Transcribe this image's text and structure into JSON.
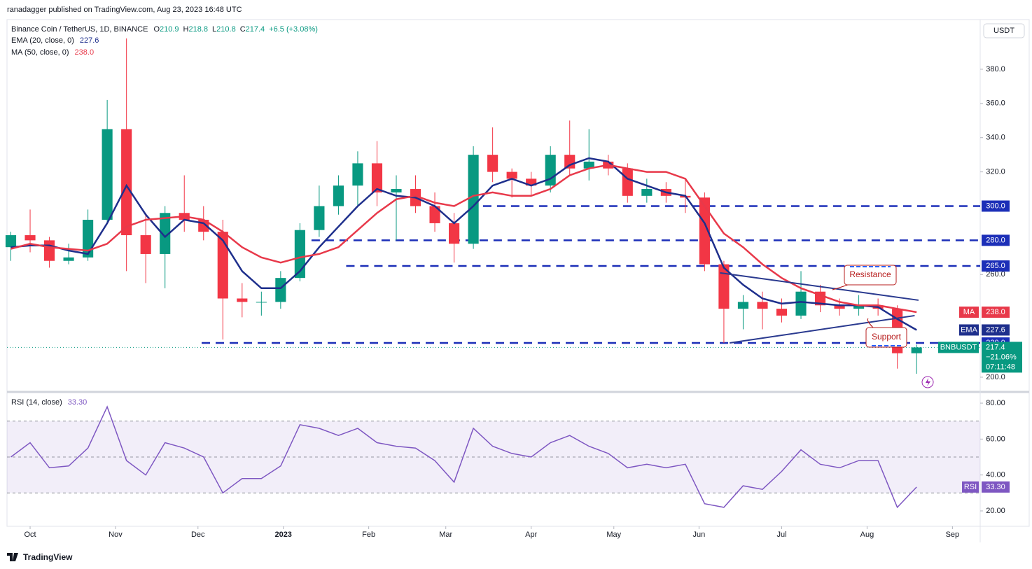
{
  "header": {
    "publisher": "ranadagger published on TradingView.com, Aug 23, 2023 16:48 UTC",
    "brand": "TradingView"
  },
  "chart_data": [
    {
      "type": "candlestick",
      "title": "Binance Coin / TetherUS, 1D, BINANCE",
      "quote": [
        {
          "label": "O",
          "value": "210.9"
        },
        {
          "label": "H",
          "value": "218.8"
        },
        {
          "label": "L",
          "value": "210.8"
        },
        {
          "label": "C",
          "value": "217.4"
        }
      ],
      "change": "+6.5 (+3.08%)",
      "currency": "USDT",
      "categories": [
        null,
        null,
        null,
        null,
        null,
        null,
        null,
        null,
        null,
        null,
        null,
        null,
        null,
        null,
        null,
        null,
        null,
        null,
        null,
        null,
        null,
        null,
        null,
        null,
        null,
        null,
        null,
        null,
        null,
        null,
        null,
        null,
        null,
        null,
        null,
        null,
        null,
        null,
        null,
        null,
        null,
        null,
        null,
        null,
        null,
        null,
        null,
        null
      ],
      "open": [
        276,
        283,
        280,
        268,
        270,
        292,
        345,
        283,
        272,
        296,
        292,
        285,
        246,
        244,
        244,
        258,
        286,
        300,
        312,
        325,
        308,
        310,
        300,
        290,
        278,
        330,
        320,
        316,
        312,
        330,
        322,
        326,
        322,
        306,
        310,
        306,
        305,
        266,
        240,
        244,
        240,
        236,
        250,
        242,
        240,
        242,
        240,
        214
      ],
      "high": [
        285,
        298,
        282,
        278,
        298,
        362,
        398,
        296,
        300,
        318,
        300,
        292,
        255,
        250,
        262,
        290,
        312,
        318,
        332,
        338,
        318,
        318,
        308,
        296,
        335,
        346,
        322,
        320,
        335,
        350,
        345,
        330,
        325,
        316,
        314,
        316,
        308,
        268,
        248,
        250,
        246,
        262,
        254,
        246,
        248,
        246,
        242,
        219
      ],
      "low": [
        268,
        273,
        264,
        266,
        268,
        290,
        262,
        255,
        252,
        285,
        280,
        222,
        235,
        236,
        240,
        256,
        282,
        295,
        300,
        300,
        280,
        296,
        285,
        267,
        275,
        314,
        305,
        306,
        308,
        318,
        315,
        318,
        302,
        302,
        302,
        296,
        262,
        220,
        228,
        228,
        232,
        234,
        238,
        236,
        236,
        236,
        205,
        202
      ],
      "close": [
        283,
        280,
        268,
        270,
        292,
        345,
        283,
        272,
        296,
        292,
        285,
        246,
        244,
        244,
        258,
        286,
        300,
        312,
        325,
        308,
        310,
        300,
        290,
        278,
        330,
        320,
        316,
        312,
        330,
        322,
        326,
        322,
        306,
        310,
        306,
        305,
        266,
        240,
        244,
        240,
        236,
        250,
        242,
        240,
        242,
        240,
        214,
        217.4
      ],
      "up_color": "#089981",
      "down_color": "#f23645",
      "xlim": [
        -0.2,
        50.3
      ],
      "xticks": [
        {
          "value": 1,
          "label": "Oct"
        },
        {
          "value": 5.43,
          "label": "Nov"
        },
        {
          "value": 9.71,
          "label": "Dec"
        },
        {
          "value": 14.14,
          "label": "2023"
        },
        {
          "value": 18.57,
          "label": "Feb"
        },
        {
          "value": 22.57,
          "label": "Mar"
        },
        {
          "value": 27,
          "label": "Apr"
        },
        {
          "value": 31.29,
          "label": "May"
        },
        {
          "value": 35.71,
          "label": "Jun"
        },
        {
          "value": 40,
          "label": "Jul"
        },
        {
          "value": 44.43,
          "label": "Aug"
        },
        {
          "value": 48.86,
          "label": "Sep"
        }
      ],
      "ylim": [
        192.2,
        408.2
      ],
      "yticks": [
        {
          "value": 200,
          "label": "200.0"
        },
        {
          "value": 260,
          "label": "260.0"
        },
        {
          "value": 320,
          "label": "320.0"
        },
        {
          "value": 340,
          "label": "340.0"
        },
        {
          "value": 360,
          "label": "360.0"
        },
        {
          "value": 380,
          "label": "380.0"
        }
      ],
      "series": [
        {
          "name": "EMA",
          "legend": "EMA (20, close, 0)",
          "last_label": "227.6",
          "color": "#1e2f8c",
          "values": [
            276,
            277,
            277,
            274,
            272,
            290,
            312,
            295,
            282,
            292,
            290,
            280,
            262,
            252,
            252,
            262,
            276,
            288,
            300,
            310,
            306,
            305,
            300,
            290,
            300,
            312,
            316,
            312,
            316,
            324,
            328,
            326,
            316,
            312,
            308,
            306,
            290,
            264,
            254,
            246,
            243,
            244,
            243,
            242,
            242,
            241,
            234,
            227.6
          ]
        },
        {
          "name": "MA",
          "legend": "MA (50, close, 0)",
          "last_label": "238.0",
          "color": "#e8394a",
          "values": [
            275,
            278,
            276,
            275,
            274,
            278,
            288,
            292,
            293,
            294,
            292,
            285,
            276,
            270,
            267,
            270,
            272,
            276,
            286,
            296,
            304,
            306,
            302,
            300,
            306,
            308,
            306,
            306,
            310,
            318,
            322,
            324,
            322,
            320,
            320,
            316,
            300,
            284,
            276,
            266,
            258,
            252,
            248,
            244,
            242,
            242,
            240,
            238
          ]
        }
      ],
      "levels": [
        {
          "value": 300,
          "label": "300.0"
        },
        {
          "value": 280,
          "label": "280.0"
        },
        {
          "value": 265,
          "label": "265.0"
        },
        {
          "value": 220,
          "label": "220.0"
        }
      ],
      "level_color": "#1c2fb8",
      "trendlines": [
        {
          "name": "Resistance",
          "x": [
            36.8,
            47.1
          ],
          "values": [
            261,
            245
          ]
        },
        {
          "name": "Support",
          "x": [
            37.3,
            46.9
          ],
          "values": [
            220,
            236
          ]
        }
      ],
      "price_badge": {
        "symbol": "BNBUSDT",
        "price": "217.4",
        "change": "−21.06%",
        "countdown": "07:11:48"
      }
    },
    {
      "type": "line",
      "title": "RSI (14, close)",
      "name": "RSI",
      "last_label": "33.30",
      "color": "#7e57c2",
      "values": [
        50,
        58,
        44,
        45,
        55,
        78,
        48,
        40,
        58,
        55,
        50,
        30,
        38,
        38,
        45,
        68,
        66,
        62,
        66,
        58,
        56,
        55,
        48,
        36,
        66,
        56,
        52,
        50,
        58,
        62,
        56,
        52,
        44,
        46,
        44,
        46,
        24,
        22,
        34,
        32,
        42,
        54,
        46,
        44,
        48,
        48,
        22,
        33.3
      ],
      "ylim": [
        12.2,
        84.3
      ],
      "yticks": [
        {
          "value": 20,
          "label": "20.00"
        },
        {
          "value": 40,
          "label": "40.00"
        },
        {
          "value": 60,
          "label": "60.00"
        },
        {
          "value": 80,
          "label": "80.00"
        }
      ],
      "bands": [
        30,
        50,
        70
      ]
    }
  ]
}
